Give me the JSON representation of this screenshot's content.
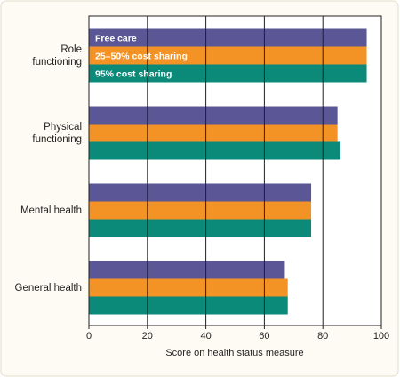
{
  "chart_data": {
    "type": "hbar",
    "categories": [
      "Role\nfunctioning",
      "Physical\nfunctioning",
      "Mental health",
      "General health"
    ],
    "series": [
      {
        "name": "Free care",
        "color": "#5b5796",
        "values": [
          95,
          85,
          76,
          67
        ]
      },
      {
        "name": "25–50% cost sharing",
        "color": "#f39325",
        "values": [
          95,
          85,
          76,
          68
        ]
      },
      {
        "name": "95%  cost sharing",
        "color": "#0b8a79",
        "values": [
          95,
          86,
          76,
          68
        ]
      }
    ],
    "xlabel": "Score on health status measure",
    "xlim": [
      0,
      100
    ],
    "xticks": [
      0,
      20,
      40,
      60,
      80,
      100
    ],
    "grid": true
  }
}
